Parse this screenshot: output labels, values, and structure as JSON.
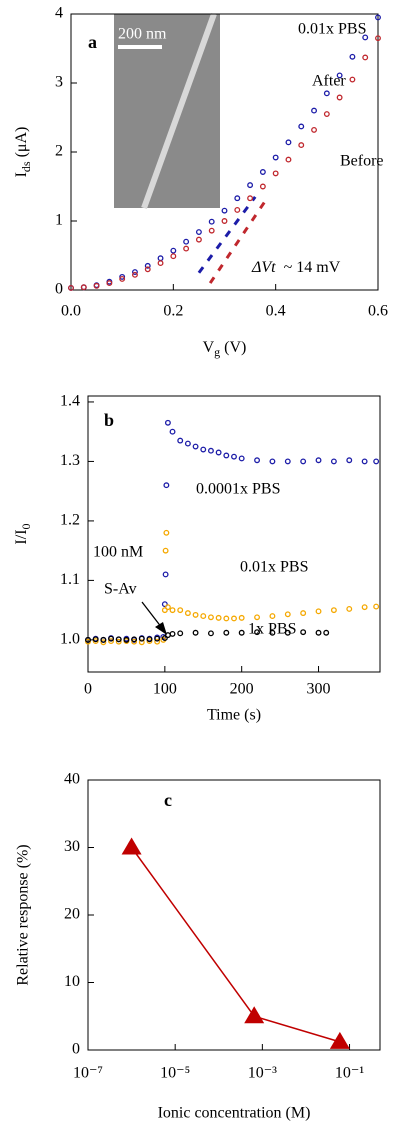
{
  "chart_data": [
    {
      "type": "scatter",
      "panel_label": "a",
      "xlabel": {
        "base": "V",
        "sub": "g",
        "rest": " (V)"
      },
      "ylabel": {
        "base": "I",
        "sub": "ds",
        "rest": " (μA)"
      },
      "xlim": [
        0,
        0.6
      ],
      "xticks": [
        {
          "value": 0,
          "label": "0.0"
        },
        0.2,
        0.4,
        0.6
      ],
      "ylim": [
        0,
        4
      ],
      "yticks": [
        0,
        1,
        2,
        3,
        4
      ],
      "x": [
        0,
        0.025,
        0.05,
        0.075,
        0.1,
        0.125,
        0.15,
        0.175,
        0.2,
        0.225,
        0.25,
        0.275,
        0.3,
        0.325,
        0.35,
        0.375,
        0.4,
        0.425,
        0.45,
        0.475,
        0.5,
        0.525,
        0.55,
        0.575,
        0.6
      ],
      "series": [
        {
          "name": "After",
          "color": "#1c1ca8",
          "values": [
            0.03,
            0.04,
            0.07,
            0.12,
            0.19,
            0.26,
            0.35,
            0.46,
            0.57,
            0.7,
            0.84,
            0.99,
            1.15,
            1.33,
            1.52,
            1.71,
            1.92,
            2.14,
            2.37,
            2.6,
            2.85,
            3.11,
            3.38,
            3.66,
            3.95
          ]
        },
        {
          "name": "Before",
          "color": "#c0272d",
          "values": [
            0.03,
            0.04,
            0.06,
            0.1,
            0.16,
            0.22,
            0.3,
            0.39,
            0.49,
            0.6,
            0.73,
            0.86,
            1.0,
            1.16,
            1.33,
            1.5,
            1.69,
            1.89,
            2.1,
            2.32,
            2.55,
            2.79,
            3.05,
            3.37,
            3.65
          ]
        }
      ],
      "fit_lines": [
        {
          "color": "#1c1ca8",
          "x": [
            0.25,
            0.36
          ],
          "values": [
            0.25,
            1.35
          ]
        },
        {
          "color": "#c0272d",
          "x": [
            0.272,
            0.385
          ],
          "values": [
            0.1,
            1.35
          ]
        }
      ],
      "annotations": [
        "0.01x PBS"
      ],
      "delta": {
        "symbol": "ΔVt",
        "text": "~ 14 mV"
      },
      "inset": {
        "scale_label": "200 nm"
      }
    },
    {
      "type": "scatter",
      "panel_label": "b",
      "xlabel": "Time (s)",
      "ylabel": {
        "base": "I/I",
        "sub": "0",
        "rest": ""
      },
      "xlim": [
        0,
        380
      ],
      "xticks": [
        0,
        100,
        200,
        300
      ],
      "ylim": [
        0.946,
        1.41
      ],
      "yticks": [
        {
          "value": 1,
          "label": "1.0"
        },
        1.1,
        1.2,
        1.3,
        1.4
      ],
      "series": [
        {
          "name": "0.0001x PBS",
          "color": "#1c1ca8",
          "x": [
            0,
            10,
            20,
            30,
            40,
            50,
            60,
            70,
            80,
            90,
            98,
            100,
            101,
            102,
            104,
            110,
            120,
            130,
            140,
            150,
            160,
            170,
            180,
            190,
            200,
            220,
            240,
            260,
            280,
            300,
            320,
            340,
            360,
            375
          ],
          "values": [
            1.0,
            1.002,
            1.0,
            1.003,
            1.001,
            1.002,
            1.0,
            1.003,
            1.002,
            1.004,
            1.005,
            1.06,
            1.11,
            1.26,
            1.365,
            1.35,
            1.335,
            1.33,
            1.325,
            1.32,
            1.318,
            1.315,
            1.31,
            1.308,
            1.305,
            1.302,
            1.3,
            1.3,
            1.3,
            1.302,
            1.3,
            1.302,
            1.3,
            1.3
          ]
        },
        {
          "name": "0.01x PBS",
          "color": "#f5a800",
          "x": [
            0,
            10,
            20,
            30,
            40,
            50,
            60,
            70,
            80,
            90,
            98,
            100,
            101,
            102,
            104,
            110,
            120,
            130,
            140,
            150,
            160,
            170,
            180,
            190,
            200,
            220,
            240,
            260,
            280,
            300,
            320,
            340,
            360,
            375
          ],
          "values": [
            0.997,
            0.998,
            0.996,
            0.998,
            0.997,
            0.998,
            0.997,
            0.996,
            0.998,
            0.997,
            1.0,
            1.05,
            1.15,
            1.18,
            1.055,
            1.05,
            1.05,
            1.045,
            1.042,
            1.04,
            1.038,
            1.037,
            1.036,
            1.036,
            1.037,
            1.038,
            1.04,
            1.043,
            1.045,
            1.048,
            1.05,
            1.052,
            1.055,
            1.056
          ]
        },
        {
          "name": "1x PBS",
          "color": "#000000",
          "x": [
            0,
            10,
            20,
            30,
            40,
            50,
            60,
            70,
            80,
            90,
            100,
            104,
            110,
            120,
            140,
            160,
            180,
            200,
            220,
            240,
            260,
            280,
            300,
            310
          ],
          "values": [
            1.0,
            1.001,
            1.0,
            1.002,
            1.001,
            1.0,
            1.001,
            1.002,
            1.001,
            1.002,
            1.003,
            1.008,
            1.01,
            1.011,
            1.012,
            1.011,
            1.012,
            1.012,
            1.013,
            1.012,
            1.012,
            1.013,
            1.012,
            1.012
          ]
        }
      ],
      "annotations": [
        "100 nM",
        "S-Av"
      ]
    },
    {
      "type": "line",
      "panel_label": "c",
      "xlabel": "Ionic concentration (M)",
      "ylabel": "Relative response (%)",
      "xscale": "log",
      "xlim": [
        1e-07,
        0.5
      ],
      "xticks": [
        {
          "value": 1e-07,
          "label": "10⁻⁷"
        },
        {
          "value": 1e-05,
          "label": "10⁻⁵"
        },
        {
          "value": 0.001,
          "label": "10⁻³"
        },
        {
          "value": 0.1,
          "label": "10⁻¹"
        }
      ],
      "ylim": [
        0,
        40
      ],
      "yticks": [
        0,
        10,
        20,
        30,
        40
      ],
      "x": [
        1e-06,
        0.00065,
        0.06
      ],
      "values": [
        30,
        5,
        1.2
      ],
      "color": "#c00000"
    }
  ]
}
